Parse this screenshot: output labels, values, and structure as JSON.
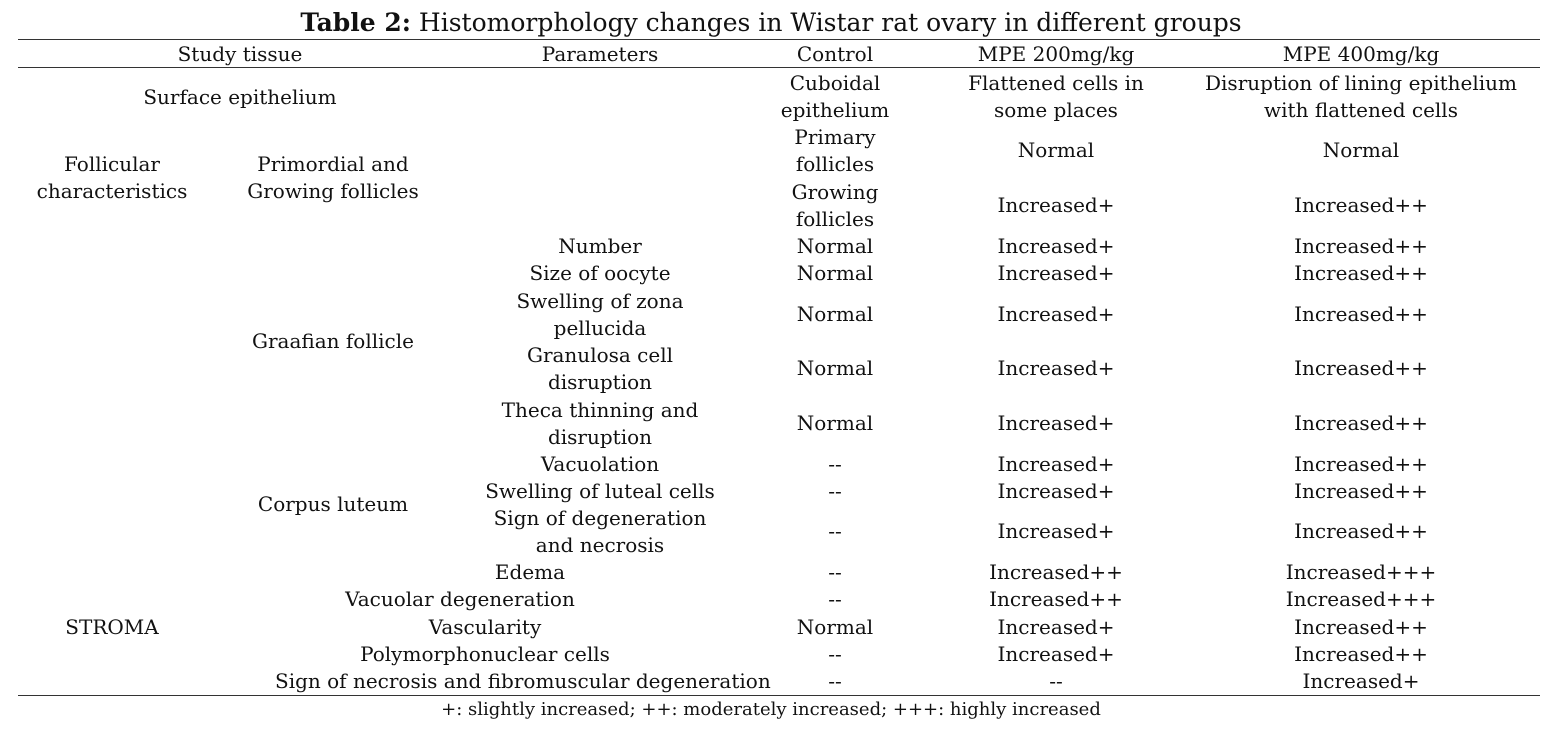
{
  "caption": {
    "lead": "Table 2:",
    "text": " Histomorphology changes in Wistar rat ovary in different groups"
  },
  "header": {
    "study_tissue": "Study tissue",
    "parameters": "Parameters",
    "control": "Control",
    "mpe200": "MPE 200mg/kg",
    "mpe400": "MPE 400mg/kg"
  },
  "groups": {
    "surface_epithelium": "Surface epithelium",
    "follicular": [
      "Follicular",
      "characteristics"
    ],
    "primordial": [
      "Primordial and",
      "Growing follicles"
    ],
    "graafian": "Graafian follicle",
    "corpus_luteum": "Corpus luteum",
    "stroma": "STROMA"
  },
  "rows": [
    {
      "parameter": [],
      "control": [
        "Cuboidal",
        "epithelium"
      ],
      "mpe200": [
        "Flattened cells in",
        "some places"
      ],
      "mpe400": [
        "Disruption of lining epithelium",
        "with flattened cells"
      ]
    },
    {
      "parameter": [],
      "control": [
        "Primary",
        "follicles"
      ],
      "mpe200": [
        "Normal"
      ],
      "mpe400": [
        "Normal"
      ]
    },
    {
      "parameter": [],
      "control": [
        "Growing",
        "follicles"
      ],
      "mpe200": [
        "Increased+"
      ],
      "mpe400": [
        "Increased++"
      ]
    },
    {
      "parameter": [
        "Number"
      ],
      "control": [
        "Normal"
      ],
      "mpe200": [
        "Increased+"
      ],
      "mpe400": [
        "Increased++"
      ]
    },
    {
      "parameter": [
        "Size of oocyte"
      ],
      "control": [
        "Normal"
      ],
      "mpe200": [
        "Increased+"
      ],
      "mpe400": [
        "Increased++"
      ]
    },
    {
      "parameter": [
        "Swelling of zona",
        "pellucida"
      ],
      "control": [
        "Normal"
      ],
      "mpe200": [
        "Increased+"
      ],
      "mpe400": [
        "Increased++"
      ]
    },
    {
      "parameter": [
        "Granulosa cell",
        "disruption"
      ],
      "control": [
        "Normal"
      ],
      "mpe200": [
        "Increased+"
      ],
      "mpe400": [
        "Increased++"
      ]
    },
    {
      "parameter": [
        "Theca thinning and",
        "disruption"
      ],
      "control": [
        "Normal"
      ],
      "mpe200": [
        "Increased+"
      ],
      "mpe400": [
        "Increased++"
      ]
    },
    {
      "parameter": [
        "Vacuolation"
      ],
      "control": [
        "--"
      ],
      "mpe200": [
        "Increased+"
      ],
      "mpe400": [
        "Increased++"
      ]
    },
    {
      "parameter": [
        "Swelling of luteal cells"
      ],
      "control": [
        "--"
      ],
      "mpe200": [
        "Increased+"
      ],
      "mpe400": [
        "Increased++"
      ]
    },
    {
      "parameter": [
        "Sign of degeneration",
        "and necrosis"
      ],
      "control": [
        "--"
      ],
      "mpe200": [
        "Increased+"
      ],
      "mpe400": [
        "Increased++"
      ]
    },
    {
      "parameter": [
        "Edema"
      ],
      "control": [
        "--"
      ],
      "mpe200": [
        "Increased++"
      ],
      "mpe400": [
        "Increased+++"
      ]
    },
    {
      "parameter": [
        "Vacuolar degeneration"
      ],
      "control": [
        "--"
      ],
      "mpe200": [
        "Increased++"
      ],
      "mpe400": [
        "Increased+++"
      ]
    },
    {
      "parameter": [
        "Vascularity"
      ],
      "control": [
        "Normal"
      ],
      "mpe200": [
        "Increased+"
      ],
      "mpe400": [
        "Increased++"
      ]
    },
    {
      "parameter": [
        "Polymorphonuclear cells"
      ],
      "control": [
        "--"
      ],
      "mpe200": [
        "Increased+"
      ],
      "mpe400": [
        "Increased++"
      ]
    },
    {
      "parameter": [
        "Sign of necrosis and fibromuscular degeneration"
      ],
      "control": [
        "--"
      ],
      "mpe200": [
        "--"
      ],
      "mpe400": [
        "Increased+"
      ]
    }
  ],
  "footnote": "+: slightly increased; ++: moderately increased; +++: highly increased"
}
